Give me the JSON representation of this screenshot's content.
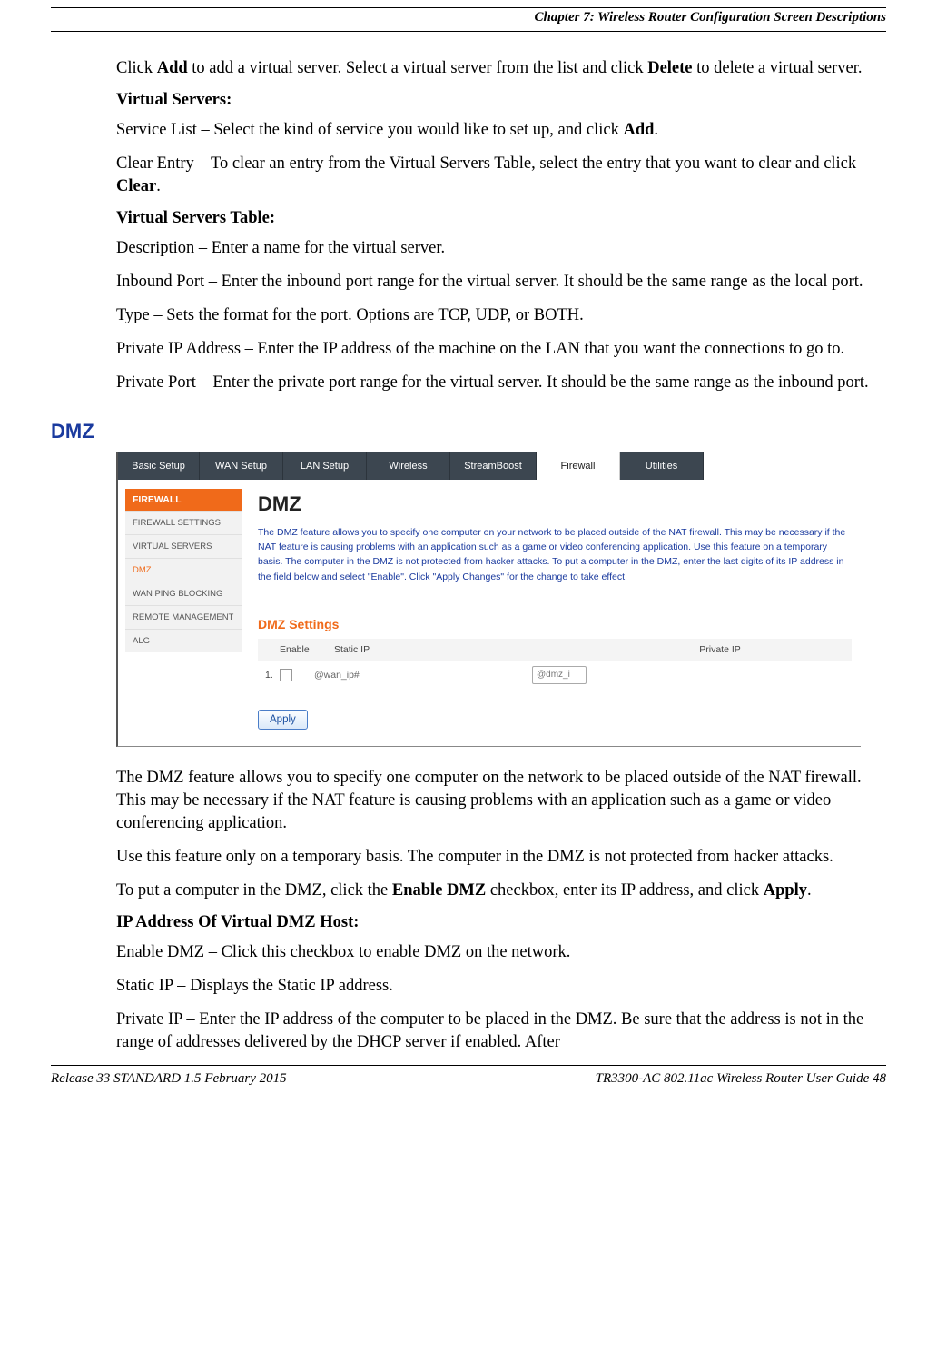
{
  "header": {
    "chapter_line": "Chapter 7: Wireless Router Configuration Screen Descriptions"
  },
  "intro": {
    "p1a": "Click ",
    "p1b": "Add",
    "p1c": " to add a virtual server.  Select a virtual server from the list and click ",
    "p1d": "Delete",
    "p1e": " to delete a virtual server.",
    "vs_head": "Virtual Servers:",
    "vs_service_a": "Service List – Select the kind of service you would like to set up, and click ",
    "vs_service_b": "Add",
    "vs_service_c": ".",
    "vs_clear_a": "Clear Entry – To clear an entry from the Virtual Servers Table, select the entry that you want to clear and click ",
    "vs_clear_b": "Clear",
    "vs_clear_c": ".",
    "vst_head": "Virtual Servers Table:",
    "vst_desc": "Description – Enter a name for the virtual server.",
    "vst_inbound": "Inbound Port – Enter the inbound port range for the virtual server.  It should be the same range as the local port.",
    "vst_type": "Type – Sets the format for the port.  Options are TCP, UDP, or BOTH.",
    "vst_privip": "Private IP Address – Enter the IP address of the machine on the LAN that you want the connections to go to.",
    "vst_privport": "Private Port – Enter the private port range for the virtual server.  It should be the same range as the inbound port."
  },
  "dmz": {
    "section_title": "DMZ",
    "ui": {
      "tabs": [
        "Basic Setup",
        "WAN Setup",
        "LAN Setup",
        "Wireless",
        "StreamBoost",
        "Firewall",
        "Utilities"
      ],
      "active_tab_index": 5,
      "side_head": "FIREWALL",
      "side_items": [
        "FIREWALL SETTINGS",
        "VIRTUAL SERVERS",
        "DMZ",
        "WAN PING BLOCKING",
        "REMOTE MANAGEMENT",
        "ALG"
      ],
      "side_selected_index": 2,
      "main_title": "DMZ",
      "main_desc": "The DMZ feature allows you to specify one computer on your network to be placed outside of the NAT firewall. This may be necessary if the NAT feature is causing problems with an application such as a game or video conferencing application. Use this feature on a temporary basis. The computer in the DMZ is not protected from hacker attacks. To put a computer in the DMZ, enter the last digits of its IP address in the field below and select \"Enable\". Click \"Apply Changes\" for the change to take effect.",
      "settings_title": "DMZ Settings",
      "col_enable": "Enable",
      "col_static": "Static IP",
      "col_private": "Private IP",
      "row_idx": "1.",
      "wan_ip": "@wan_ip#",
      "private_placeholder": "@dmz_i",
      "apply": "Apply"
    },
    "p1": "The DMZ feature allows you to specify one computer on the network to be placed outside of the NAT firewall.  This may be necessary if the NAT feature is causing problems with an application such as a game or video conferencing application.",
    "p2": "Use this feature only on a temporary basis.  The computer in the DMZ is not protected from hacker attacks.",
    "p3a": "To put a computer in the DMZ, click the ",
    "p3b": "Enable DMZ",
    "p3c": " checkbox, enter its IP address, and click ",
    "p3d": "Apply",
    "p3e": ".",
    "ip_head": "IP Address Of Virtual DMZ Host:",
    "ip_enable": "Enable DMZ – Click this checkbox to enable DMZ on the network.",
    "ip_static": "Static IP – Displays the Static IP address.",
    "ip_private": "Private IP – Enter the IP address of the computer to be placed in the DMZ.  Be sure that the address is not in the range of addresses delivered by the DHCP server if enabled.  After"
  },
  "footer": {
    "left": "Release 33 STANDARD 1.5    February 2015",
    "right": "TR3300-AC 802.11ac Wireless Router User Guide    48"
  },
  "colors": {
    "blue_heading": "#1a3a9e",
    "orange": "#f06a1a",
    "tab_bg": "#3c4650"
  }
}
